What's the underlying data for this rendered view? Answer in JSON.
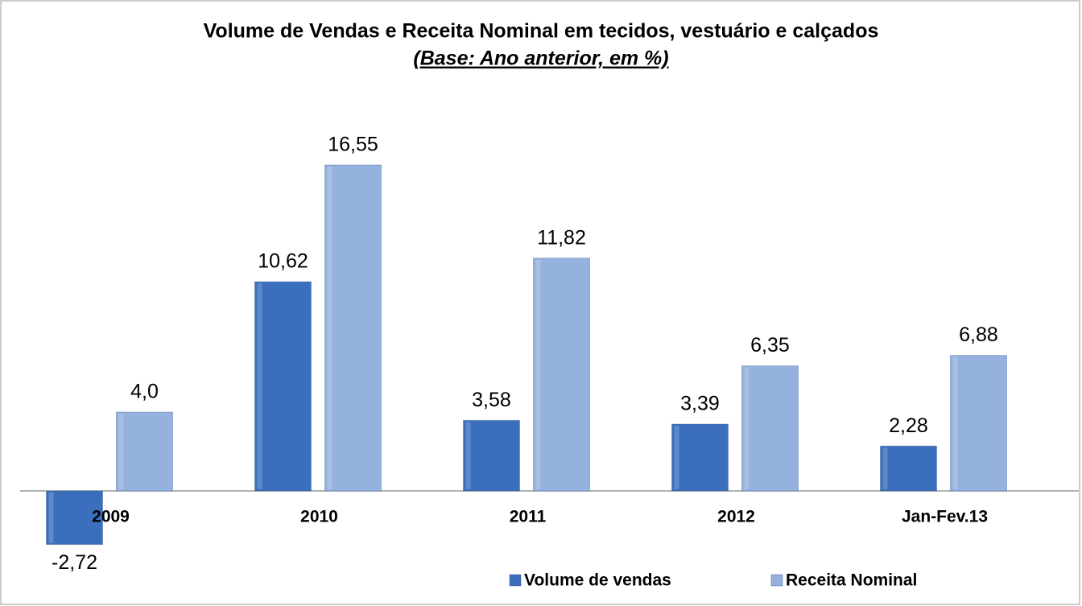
{
  "chart_data": {
    "type": "bar",
    "title": "Volume de Vendas e Receita Nominal em tecidos, vestuário e calçados",
    "subtitle": "(Base: Ano anterior, em %)",
    "categories": [
      "2009",
      "2010",
      "2011",
      "2012",
      "Jan-Fev.13"
    ],
    "series": [
      {
        "name": "Volume de vendas",
        "color": "#3b6fbe",
        "values": [
          -2.72,
          10.62,
          3.58,
          3.39,
          2.28
        ],
        "value_labels": [
          "-2,72",
          "10,62",
          "3,58",
          "3,39",
          "2,28"
        ]
      },
      {
        "name": "Receita Nominal",
        "color": "#94b2dd",
        "values": [
          4.0,
          16.55,
          11.82,
          6.35,
          6.88
        ],
        "value_labels": [
          "4,0",
          "16,55",
          "11,82",
          "6,35",
          "6,88"
        ]
      }
    ],
    "legend": "bottom"
  }
}
